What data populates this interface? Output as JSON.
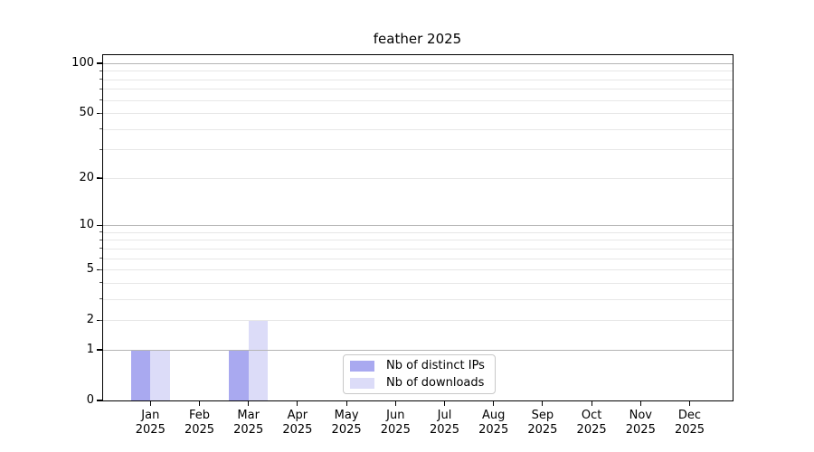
{
  "title": "feather 2025",
  "chart_data": {
    "type": "bar",
    "title": "feather 2025",
    "categories": [
      "Jan 2025",
      "Feb 2025",
      "Mar 2025",
      "Apr 2025",
      "May 2025",
      "Jun 2025",
      "Jul 2025",
      "Aug 2025",
      "Sep 2025",
      "Oct 2025",
      "Nov 2025",
      "Dec 2025"
    ],
    "category_months": [
      "Jan",
      "Feb",
      "Mar",
      "Apr",
      "May",
      "Jun",
      "Jul",
      "Aug",
      "Sep",
      "Oct",
      "Nov",
      "Dec"
    ],
    "category_year": "2025",
    "series": [
      {
        "name": "Nb of distinct IPs",
        "color": "#a9a9f0",
        "values": [
          1,
          0,
          1,
          0,
          0,
          0,
          0,
          0,
          0,
          0,
          0,
          0
        ]
      },
      {
        "name": "Nb of downloads",
        "color": "#dcdcf8",
        "values": [
          1,
          0,
          2,
          0,
          0,
          0,
          0,
          0,
          0,
          0,
          0,
          0
        ]
      }
    ],
    "y_axis": {
      "scale": "log1p",
      "tick_values": [
        0,
        1,
        2,
        5,
        10,
        20,
        50,
        100
      ],
      "tick_labels": [
        "0",
        "1",
        "2",
        "5",
        "10",
        "20",
        "50",
        "100"
      ],
      "major_grid_values": [
        1,
        10,
        100
      ],
      "minor_grid_values": [
        2,
        3,
        4,
        5,
        6,
        7,
        8,
        9,
        20,
        30,
        40,
        50,
        60,
        70,
        80,
        90
      ],
      "ylim": [
        0,
        113
      ]
    },
    "legend": {
      "position": "lower center",
      "entries": [
        "Nb of distinct IPs",
        "Nb of downloads"
      ]
    },
    "grid": true,
    "colors": {
      "background": "#ffffff",
      "axis": "#000000",
      "major_grid": "#b5b5b5",
      "minor_grid": "#e7e7e7"
    }
  }
}
